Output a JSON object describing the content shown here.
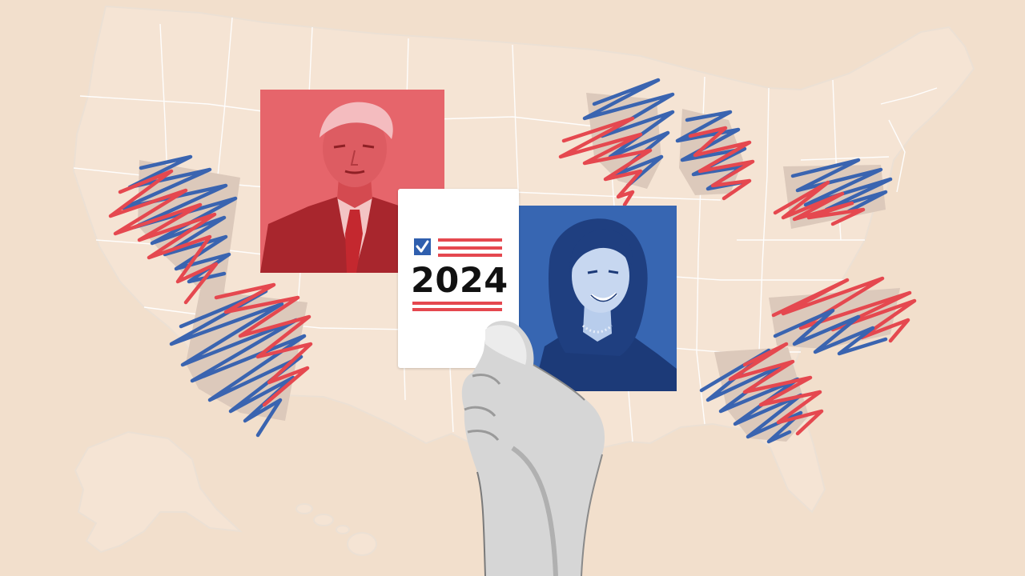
{
  "ballot": {
    "year": "2024"
  },
  "colors": {
    "background": "#f2dfcc",
    "map_land": "#f5e4d4",
    "state_lines": "#ffffff",
    "swing_state_fill": "#dcc9bb",
    "republican_red": "#e5484f",
    "democrat_blue": "#3a64b0",
    "ballot_white": "#ffffff"
  },
  "icons": {
    "checkbox": "checkbox-checked-icon",
    "stripes": "flag-stripes-icon"
  }
}
